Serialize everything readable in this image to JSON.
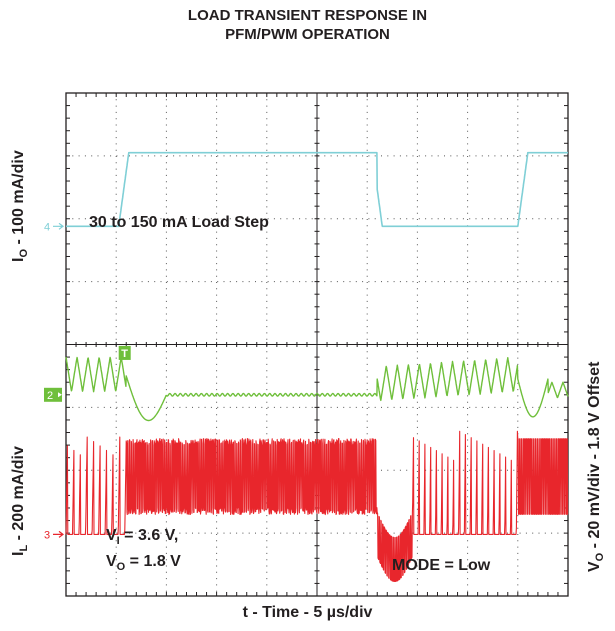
{
  "title": [
    "LOAD TRANSIENT RESPONSE IN",
    "PFM/PWM OPERATION"
  ],
  "chart_data": {
    "type": "line",
    "title": "LOAD TRANSIENT RESPONSE IN PFM/PWM OPERATION",
    "xlabel": "t - Time - 5 µs/div",
    "x_divisions": 10,
    "y_divisions": 8,
    "grid": true,
    "left_axis_labels": [
      {
        "main": "I",
        "sub": "O",
        "rest": " - 100 mA/div"
      },
      {
        "main": "I",
        "sub": "L",
        "rest": " - 200 mA/div"
      }
    ],
    "right_axis_label": {
      "main": "V",
      "sub": "O",
      "rest": " - 20 mV/div - 1.8 V Offset"
    },
    "channels": [
      {
        "id": "4",
        "name": "I_O",
        "color": "#7fcfd6"
      },
      {
        "id": "2",
        "name": "V_O",
        "color": "#6fbf3b"
      },
      {
        "id": "3",
        "name": "I_L",
        "color": "#e8262c"
      }
    ],
    "trigger_marker": "T",
    "annotations": {
      "load_step": "30 to 150 mA Load Step",
      "vi": {
        "main": "V",
        "sub": "I",
        "rest": " = 3.6 V,"
      },
      "vo": {
        "main": "V",
        "sub": "O",
        "rest": " = 1.8 V"
      },
      "mode": "MODE = Low"
    },
    "load_step_current_mA": [
      30,
      150
    ],
    "load_step_rise_time_div": 1.2,
    "load_step_fall_time_div": 6.2,
    "vi_V": 3.6,
    "vo_V": 1.8
  }
}
